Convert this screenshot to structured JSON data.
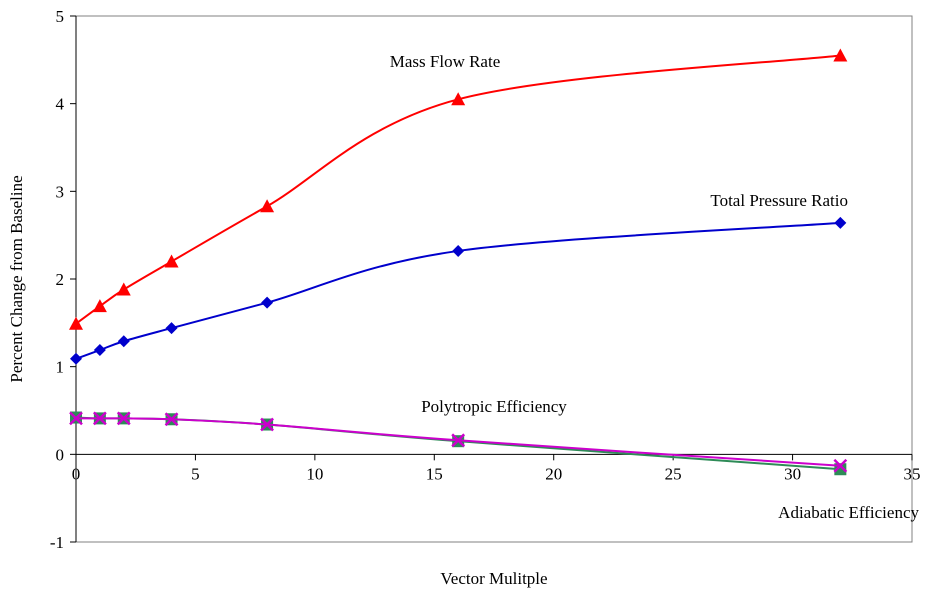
{
  "chart_data": {
    "type": "line",
    "title": "",
    "xlabel": "Vector Mulitple",
    "ylabel": "Percent Change from Baseline",
    "xlim": [
      0,
      35
    ],
    "ylim": [
      -1,
      5
    ],
    "x_ticks": [
      0,
      5,
      10,
      15,
      20,
      25,
      30,
      35
    ],
    "y_ticks": [
      -1,
      0,
      1,
      2,
      3,
      4,
      5
    ],
    "grid": false,
    "legend": "none",
    "x": [
      0,
      1,
      2,
      4,
      8,
      16,
      32
    ],
    "series": [
      {
        "name": "Mass Flow Rate",
        "values": [
          1.49,
          1.69,
          1.88,
          2.2,
          2.83,
          4.05,
          4.55
        ],
        "color": "#ff0000",
        "marker": "triangle"
      },
      {
        "name": "Total Pressure Ratio",
        "values": [
          1.09,
          1.19,
          1.29,
          1.44,
          1.73,
          2.32,
          2.64
        ],
        "color": "#0000cc",
        "marker": "diamond"
      },
      {
        "name": "Polytropic Efficiency",
        "values": [
          0.41,
          0.41,
          0.41,
          0.4,
          0.34,
          0.16,
          -0.13
        ],
        "color": "#cc00cc",
        "marker": "x"
      },
      {
        "name": "Adiabatic Efficiency",
        "values": [
          0.42,
          0.41,
          0.41,
          0.4,
          0.34,
          0.15,
          -0.17
        ],
        "color": "#2e8b57",
        "marker": "square"
      }
    ]
  }
}
